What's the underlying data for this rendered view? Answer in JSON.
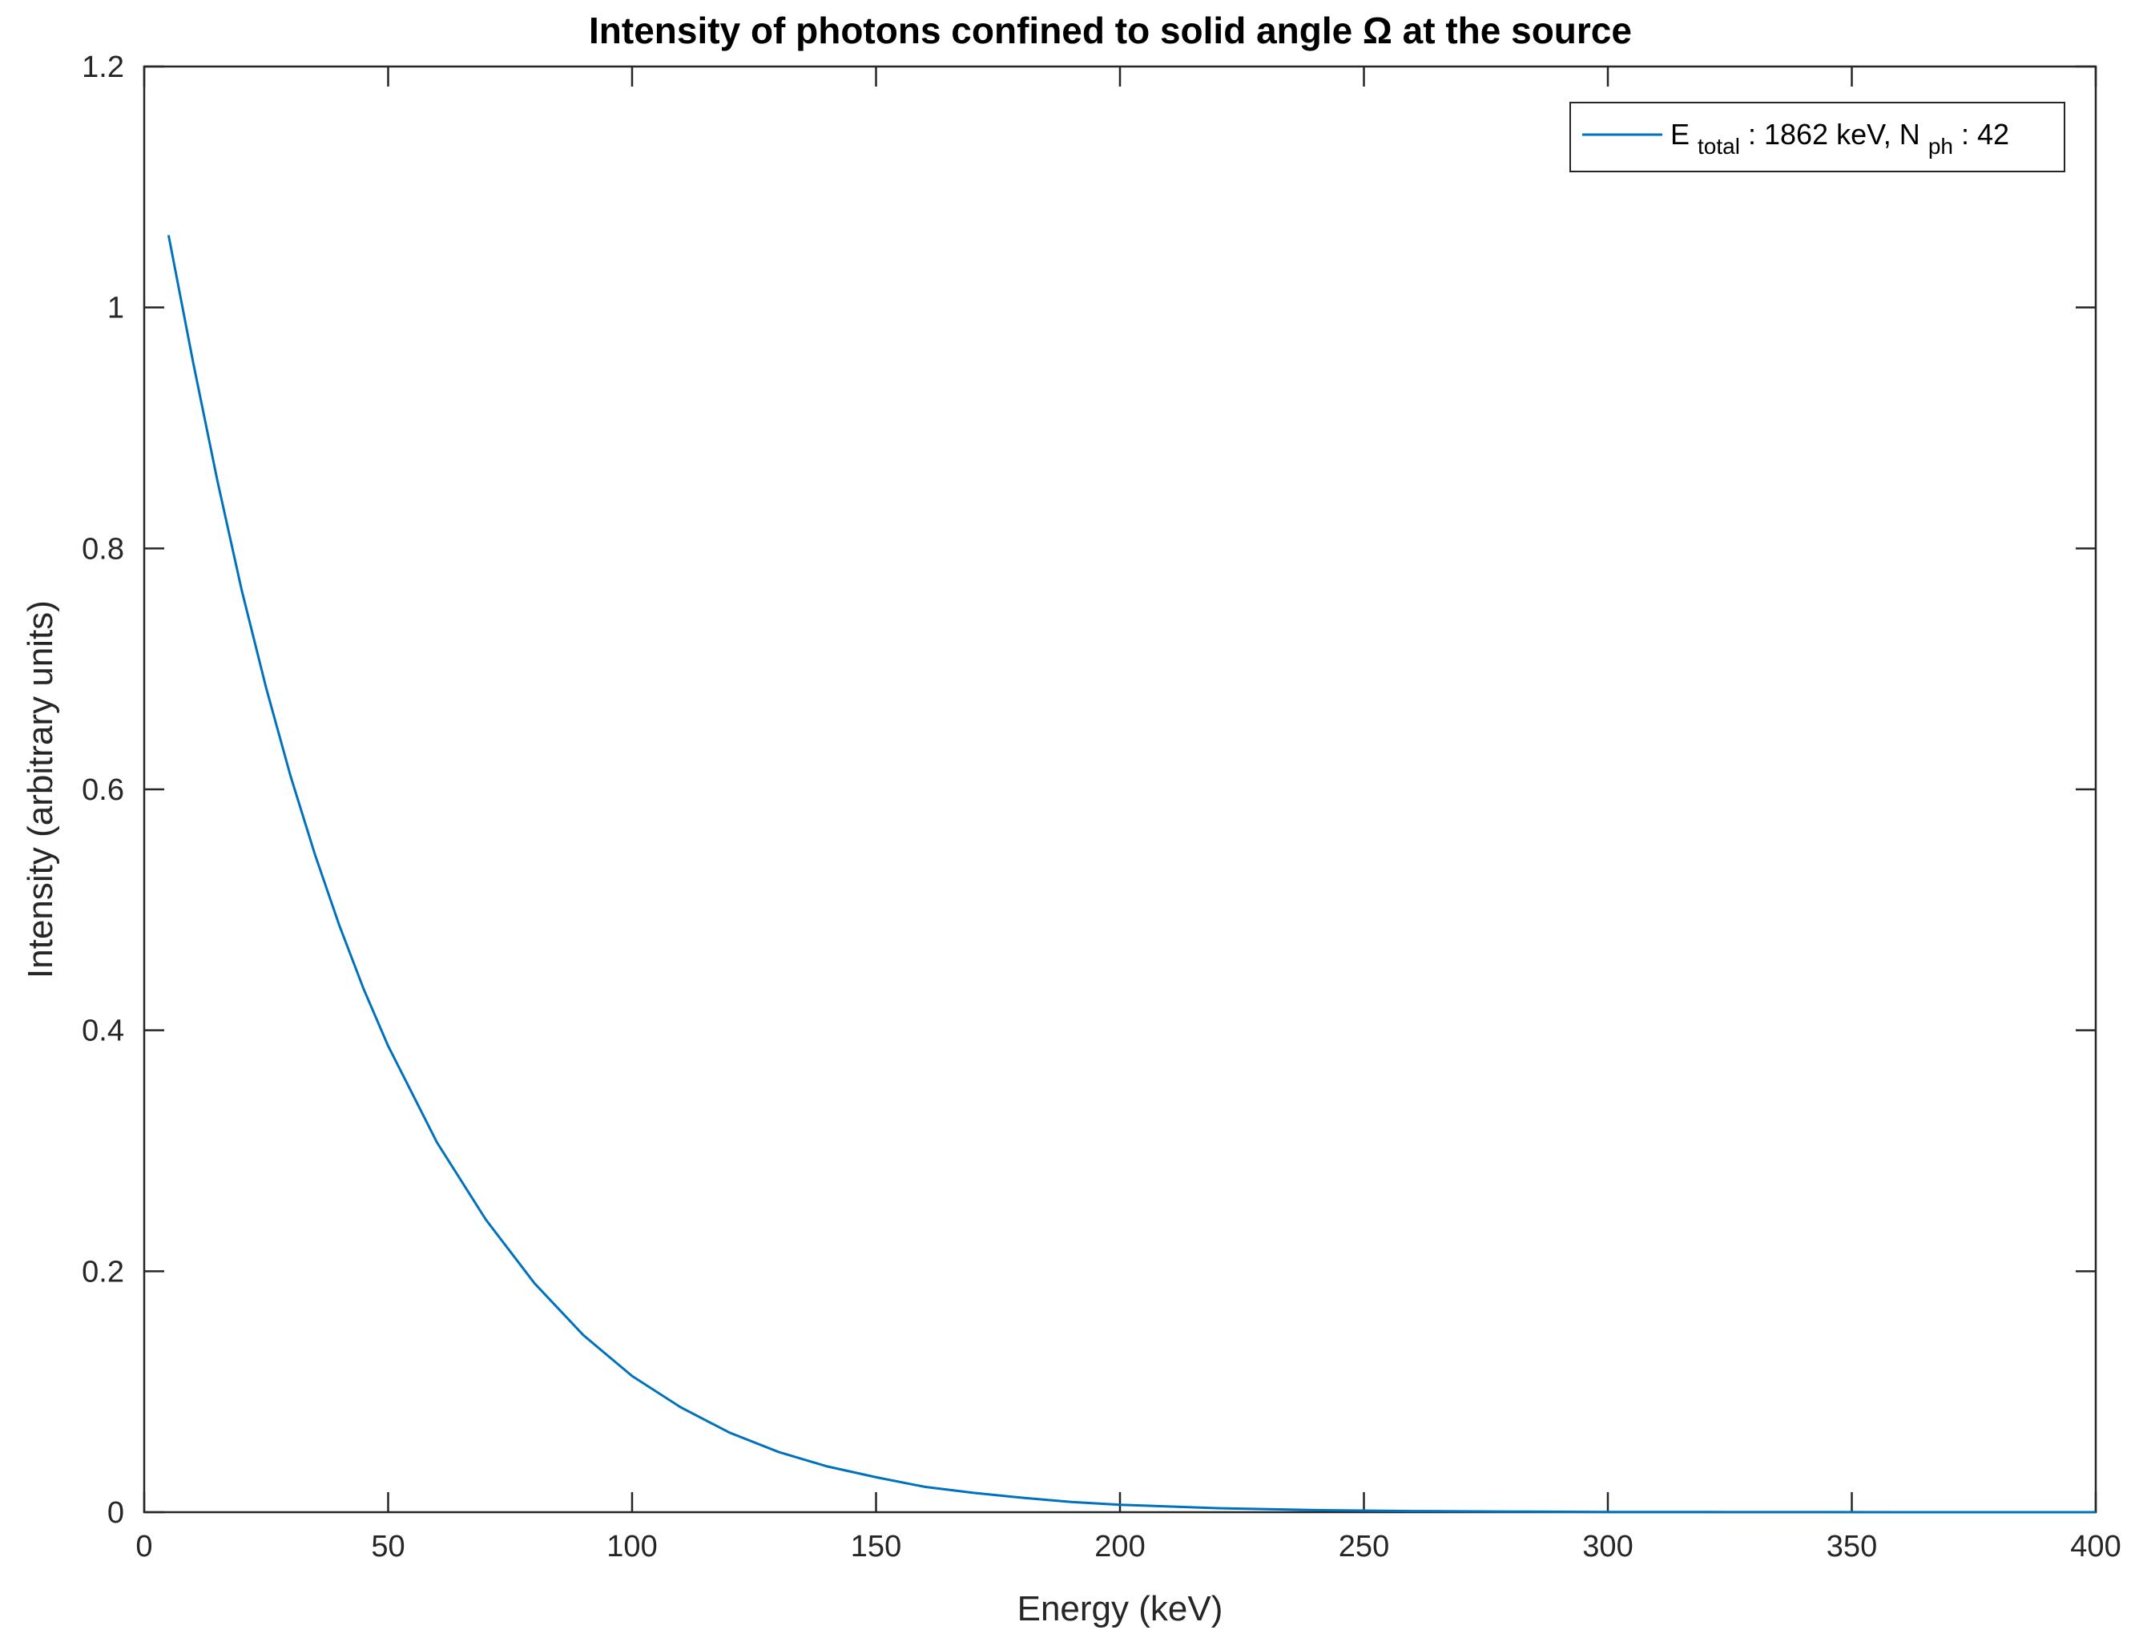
{
  "chart_data": {
    "type": "line",
    "title": "Intensity of photons confined to solid angle Ω at the source",
    "xlabel": "Energy (keV)",
    "ylabel": "Intensity (arbitrary units)",
    "xlim": [
      0,
      400
    ],
    "ylim": [
      0,
      1.2
    ],
    "xticks": [
      0,
      50,
      100,
      150,
      200,
      250,
      300,
      350,
      400
    ],
    "xtick_labels": [
      "0",
      "50",
      "100",
      "150",
      "200",
      "250",
      "300",
      "350",
      "400"
    ],
    "yticks": [
      0,
      0.2,
      0.4,
      0.6,
      0.8,
      1.0,
      1.2
    ],
    "ytick_labels": [
      "0",
      "0.2",
      "0.4",
      "0.6",
      "0.8",
      "1",
      "1.2"
    ],
    "grid": false,
    "legend_position": "top-right",
    "series": [
      {
        "color": "#0072BD",
        "legend": {
          "e_main": "E",
          "e_sub": "total",
          "middle": " : 1862 keV, N",
          "n_sub": "ph",
          "tail": ": 42"
        },
        "x": [
          5,
          10,
          15,
          20,
          25,
          30,
          35,
          40,
          45,
          50,
          60,
          70,
          80,
          90,
          100,
          110,
          120,
          130,
          140,
          150,
          160,
          170,
          180,
          190,
          200,
          220,
          240,
          260,
          280,
          300,
          320,
          340,
          360,
          380,
          400
        ],
        "y": [
          1.06,
          0.955,
          0.856,
          0.765,
          0.684,
          0.611,
          0.546,
          0.487,
          0.434,
          0.387,
          0.307,
          0.243,
          0.19,
          0.147,
          0.113,
          0.087,
          0.066,
          0.05,
          0.038,
          0.029,
          0.021,
          0.016,
          0.012,
          0.0085,
          0.0062,
          0.0033,
          0.0017,
          0.0009,
          0.0005,
          0.0002,
          0.0001,
          5e-05,
          3e-05,
          1e-05,
          0.0
        ]
      }
    ]
  }
}
